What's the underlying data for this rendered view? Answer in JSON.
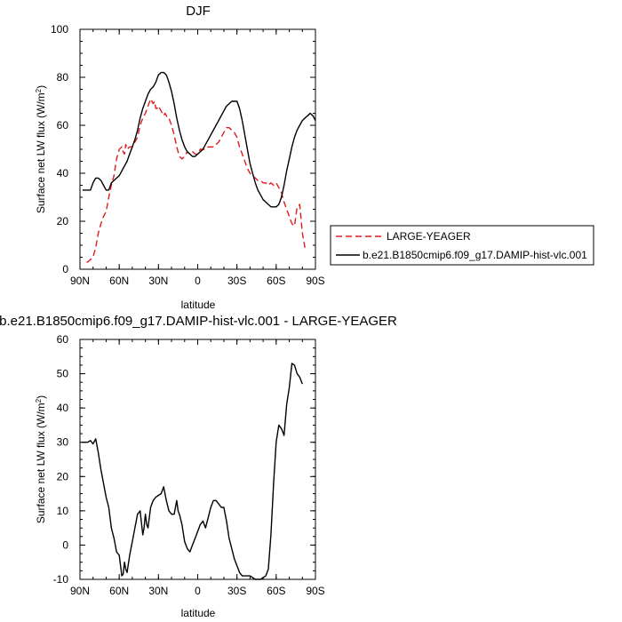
{
  "chart_data": [
    {
      "type": "line",
      "title": "DJF",
      "xlabel": "latitude",
      "ylabel_main": "Surface net LW flux (W/m",
      "ylabel_sup": "2",
      "ylabel_close": ")",
      "xlim": [
        90,
        -90
      ],
      "ylim": [
        0,
        100
      ],
      "x_ticks": [
        90,
        60,
        30,
        0,
        -30,
        -60,
        -90
      ],
      "x_tick_labels": [
        "90N",
        "60N",
        "30N",
        "0",
        "30S",
        "60S",
        "90S"
      ],
      "y_ticks": [
        0,
        20,
        40,
        60,
        80,
        100
      ],
      "y_tick_labels": [
        "0",
        "20",
        "40",
        "60",
        "80",
        "100"
      ],
      "legend_position": "right",
      "series": [
        {
          "name": "LARGE-YEAGER",
          "color": "#e31a1c",
          "dash": "dashed",
          "x": [
            85,
            84,
            82,
            80,
            78,
            76,
            74,
            72,
            70,
            68,
            66,
            64,
            62,
            60,
            58,
            57,
            56,
            55,
            54,
            52,
            50,
            48,
            46,
            44,
            42,
            40,
            38,
            36,
            34,
            33,
            32,
            31,
            30,
            28,
            26,
            25,
            24,
            23,
            22,
            20,
            18,
            16,
            14,
            12,
            10,
            8,
            6,
            4,
            2,
            0,
            -2,
            -4,
            -6,
            -8,
            -10,
            -12,
            -14,
            -16,
            -18,
            -20,
            -22,
            -24,
            -26,
            -28,
            -30,
            -32,
            -34,
            -36,
            -38,
            -40,
            -42,
            -44,
            -46,
            -48,
            -50,
            -52,
            -54,
            -56,
            -58,
            -60,
            -62,
            -64,
            -66,
            -68,
            -70,
            -72,
            -74,
            -75,
            -76,
            -78,
            -80,
            -82
          ],
          "y": [
            3,
            3,
            4,
            5,
            9,
            15,
            19,
            22,
            24,
            30,
            35,
            39,
            46,
            50,
            51,
            49,
            48,
            52,
            50,
            51,
            51,
            53,
            55,
            60,
            63,
            65,
            68,
            71,
            69,
            70,
            67,
            67,
            68,
            66,
            64,
            65,
            64,
            63,
            63,
            60,
            56,
            51,
            47,
            46,
            47,
            49,
            48,
            49,
            48,
            48,
            50,
            50,
            50,
            51,
            51,
            51,
            52,
            53,
            55,
            57,
            59,
            59,
            58,
            57,
            55,
            51,
            48,
            45,
            42,
            40,
            39,
            38,
            37,
            37,
            36,
            36,
            35,
            36,
            35,
            36,
            34,
            32,
            28,
            25,
            22,
            19,
            18,
            22,
            26,
            27,
            15,
            9
          ]
        },
        {
          "name": "b.e21.B1850cmip6.f09_g17.DAMIP-hist-vlc.001",
          "color": "#000000",
          "dash": "solid",
          "x": [
            88,
            86,
            84,
            82,
            80,
            78,
            76,
            74,
            72,
            70,
            68,
            66,
            64,
            62,
            60,
            58,
            56,
            54,
            52,
            50,
            48,
            46,
            44,
            42,
            40,
            38,
            36,
            34,
            32,
            30,
            28,
            26,
            24,
            22,
            20,
            18,
            16,
            14,
            12,
            10,
            8,
            6,
            4,
            2,
            0,
            -2,
            -4,
            -6,
            -8,
            -10,
            -12,
            -14,
            -16,
            -18,
            -20,
            -22,
            -24,
            -26,
            -28,
            -30,
            -32,
            -34,
            -36,
            -38,
            -40,
            -42,
            -44,
            -46,
            -48,
            -50,
            -52,
            -54,
            -56,
            -58,
            -60,
            -62,
            -64,
            -66,
            -68,
            -70,
            -72,
            -74,
            -76,
            -78,
            -80,
            -82,
            -84,
            -86,
            -88,
            -90
          ],
          "y": [
            33,
            33,
            33,
            33,
            36,
            38,
            38,
            37,
            35,
            33,
            33,
            36,
            37,
            38,
            39,
            41,
            43,
            45,
            48,
            51,
            54,
            58,
            63,
            67,
            70,
            73,
            75,
            76,
            78,
            81,
            82,
            82,
            81,
            78,
            74,
            69,
            63,
            58,
            54,
            51,
            49,
            48,
            47,
            47,
            48,
            49,
            50,
            52,
            54,
            56,
            58,
            60,
            62,
            64,
            66,
            68,
            69,
            70,
            70,
            70,
            67,
            62,
            56,
            50,
            44,
            40,
            36,
            33,
            31,
            29,
            28,
            27,
            26,
            26,
            26,
            27,
            30,
            35,
            41,
            46,
            51,
            55,
            58,
            60,
            62,
            63,
            64,
            65,
            64,
            62
          ]
        }
      ]
    },
    {
      "type": "line",
      "title": "b.e21.B1850cmip6.f09_g17.DAMIP-hist-vlc.001 - LARGE-YEAGER",
      "xlabel": "latitude",
      "ylabel_main": "Surface net LW flux (W/m",
      "ylabel_sup": "2",
      "ylabel_close": ")",
      "xlim": [
        90,
        -90
      ],
      "ylim": [
        -10,
        60
      ],
      "x_ticks": [
        90,
        60,
        30,
        0,
        -30,
        -60,
        -90
      ],
      "x_tick_labels": [
        "90N",
        "60N",
        "30N",
        "0",
        "30S",
        "60S",
        "90S"
      ],
      "y_ticks": [
        -10,
        0,
        10,
        20,
        30,
        40,
        50,
        60
      ],
      "y_tick_labels": [
        "-10",
        "0",
        "10",
        "20",
        "30",
        "40",
        "50",
        "60"
      ],
      "series": [
        {
          "color": "#000000",
          "dash": "solid",
          "x": [
            88,
            86,
            84,
            82,
            80,
            78,
            76,
            74,
            72,
            70,
            68,
            66,
            64,
            62,
            60,
            58,
            57,
            56,
            55,
            54,
            52,
            50,
            48,
            46,
            44,
            42,
            41,
            40,
            39,
            38,
            36,
            34,
            32,
            30,
            28,
            26,
            25,
            24,
            22,
            20,
            18,
            16,
            15,
            14,
            12,
            10,
            8,
            6,
            4,
            2,
            0,
            -2,
            -4,
            -6,
            -8,
            -10,
            -12,
            -14,
            -16,
            -18,
            -20,
            -22,
            -24,
            -26,
            -28,
            -30,
            -32,
            -34,
            -36,
            -38,
            -40,
            -42,
            -44,
            -46,
            -48,
            -50,
            -52,
            -54,
            -56,
            -58,
            -60,
            -62,
            -64,
            -66,
            -68,
            -70,
            -72,
            -74,
            -76,
            -78,
            -79,
            -80
          ],
          "y": [
            30,
            30,
            30,
            30.5,
            29.5,
            31,
            27,
            22,
            18,
            14,
            11,
            5,
            2,
            -2,
            -3,
            -9,
            -8.5,
            -5,
            -7,
            -8,
            -3,
            1,
            5,
            9,
            10,
            3,
            5,
            9,
            6,
            5,
            11,
            13,
            14,
            14.5,
            15,
            17,
            15,
            13,
            10,
            9,
            9,
            13,
            10,
            9,
            6,
            1,
            -1,
            -2,
            0,
            2,
            4,
            6,
            7,
            5,
            8,
            11,
            13,
            13,
            12,
            11,
            11,
            7,
            2,
            -1,
            -4,
            -6,
            -8,
            -9,
            -9,
            -9,
            -9,
            -9.5,
            -10,
            -10,
            -10,
            -9.5,
            -9,
            -7,
            3,
            18,
            30,
            35,
            34,
            32,
            41,
            46,
            53,
            52.5,
            50,
            49,
            48,
            47
          ]
        }
      ]
    }
  ]
}
